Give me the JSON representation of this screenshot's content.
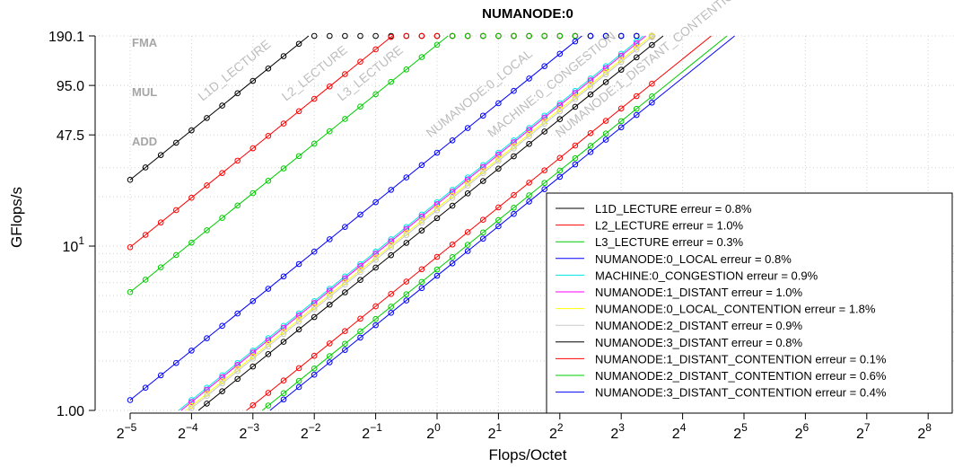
{
  "chart_data": {
    "type": "scatter",
    "title": "NUMANODE:0",
    "xlabel": "Flops/Octet",
    "ylabel": "GFlops/s",
    "x_scale": "log2",
    "y_scale": "log",
    "xlim": [
      0.03125,
      256
    ],
    "ylim": [
      1.0,
      190.1
    ],
    "x_ticks": [
      {
        "value": 0.03125,
        "base": "2",
        "exp": "−5"
      },
      {
        "value": 0.0625,
        "base": "2",
        "exp": "−4"
      },
      {
        "value": 0.125,
        "base": "2",
        "exp": "−3"
      },
      {
        "value": 0.25,
        "base": "2",
        "exp": "−2"
      },
      {
        "value": 0.5,
        "base": "2",
        "exp": "−1"
      },
      {
        "value": 1,
        "base": "2",
        "exp": "0"
      },
      {
        "value": 2,
        "base": "2",
        "exp": "1"
      },
      {
        "value": 4,
        "base": "2",
        "exp": "2"
      },
      {
        "value": 8,
        "base": "2",
        "exp": "3"
      },
      {
        "value": 16,
        "base": "2",
        "exp": "4"
      },
      {
        "value": 32,
        "base": "2",
        "exp": "5"
      },
      {
        "value": 64,
        "base": "2",
        "exp": "6"
      },
      {
        "value": 128,
        "base": "2",
        "exp": "7"
      },
      {
        "value": 256,
        "base": "2",
        "exp": "8"
      }
    ],
    "y_ticks": [
      {
        "value": 1.0,
        "label": "1.00",
        "base": "",
        "exp": ""
      },
      {
        "value": 10,
        "label": "",
        "base": "10",
        "exp": "1"
      },
      {
        "value": 47.5,
        "label": "47.5",
        "base": "",
        "exp": ""
      },
      {
        "value": 95.0,
        "label": "95.0",
        "base": "",
        "exp": ""
      },
      {
        "value": 190.1,
        "label": "190.1",
        "base": "",
        "exp": ""
      }
    ],
    "roofs": [
      {
        "name": "FMA",
        "value": 190.1
      },
      {
        "name": "MUL",
        "value": 95.0
      },
      {
        "name": "ADD",
        "value": 47.5
      }
    ],
    "series": [
      {
        "name": "L1D_LECTURE",
        "error": "0.8%",
        "color": "#000000",
        "bandwidth": 810,
        "label": "L1D_LECTURE"
      },
      {
        "name": "L2_LECTURE",
        "error": "1.0%",
        "color": "#ff0000",
        "bandwidth": 315,
        "label": "L2_LECTURE"
      },
      {
        "name": "L3_LECTURE",
        "error": "0.3%",
        "color": "#00cc00",
        "bandwidth": 168,
        "label": "L3_LECTURE"
      },
      {
        "name": "NUMANODE:0_LOCAL",
        "error": "0.8%",
        "color": "#0000ff",
        "bandwidth": 37,
        "label": "NUMANODE:0_LOCAL"
      },
      {
        "name": "MACHINE:0_CONGESTION",
        "error": "0.9%",
        "color": "#00e5e5",
        "bandwidth": 18.5,
        "label": "MACHINE:0_CONGESTION"
      },
      {
        "name": "NUMANODE:1_DISTANT",
        "error": "1.0%",
        "color": "#ff00ff",
        "bandwidth": 18.0
      },
      {
        "name": "NUMANODE:0_LOCAL_CONTENTION",
        "error": "1.8%",
        "color": "#ffff00",
        "bandwidth": 17.0
      },
      {
        "name": "NUMANODE:2_DISTANT",
        "error": "0.9%",
        "color": "#c8c8c8",
        "bandwidth": 16.5
      },
      {
        "name": "NUMANODE:3_DISTANT",
        "error": "0.8%",
        "color": "#000000",
        "bandwidth": 14.8
      },
      {
        "name": "NUMANODE:1_DISTANT_CONTENTION",
        "error": "0.1%",
        "color": "#ff0000",
        "bandwidth": 8.6,
        "label": "NUMANODE:1_DISTANT_CONTENTION"
      },
      {
        "name": "NUMANODE:2_DISTANT_CONTENTION",
        "error": "0.6%",
        "color": "#00cc00",
        "bandwidth": 7.2
      },
      {
        "name": "NUMANODE:3_DISTANT_CONTENTION",
        "error": "0.4%",
        "color": "#0000ff",
        "bandwidth": 6.6
      }
    ],
    "legend_word": "erreur",
    "legend_position": "bottom-right",
    "grid": true
  }
}
